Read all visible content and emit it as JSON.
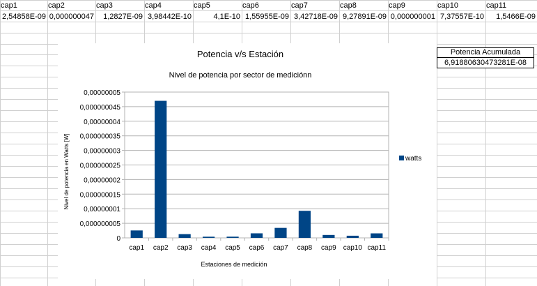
{
  "sheet": {
    "headers": [
      "cap1",
      "cap2",
      "cap3",
      "cap4",
      "cap5",
      "cap6",
      "cap7",
      "cap8",
      "cap9",
      "cap10",
      "cap11"
    ],
    "values": [
      "2,54858E-09",
      "0,000000047",
      "1,2827E-09",
      "3,98442E-10",
      "4,1E-10",
      "1,55955E-09",
      "3,42718E-09",
      "9,27891E-09",
      "0,000000001",
      "7,37557E-10",
      "1,5466E-09"
    ]
  },
  "summary": {
    "label": "Potencia Acumulada",
    "value": "6,91880630473281E-08"
  },
  "chart_data": {
    "type": "bar",
    "title": "Potencia v/s Estación",
    "subtitle": "Nivel de potencia por sector de mediciónn",
    "xlabel": "Estaciones de medición",
    "ylabel": "Nivel de potencia en Watts [W]",
    "categories": [
      "cap1",
      "cap2",
      "cap3",
      "cap4",
      "cap5",
      "cap6",
      "cap7",
      "cap8",
      "cap9",
      "cap10",
      "cap11"
    ],
    "series": [
      {
        "name": "watts",
        "values": [
          2.54858e-09,
          4.7e-08,
          1.2827e-09,
          3.98442e-10,
          4.1e-10,
          1.55955e-09,
          3.42718e-09,
          9.27891e-09,
          1e-09,
          7.37557e-10,
          1.5466e-09
        ]
      }
    ],
    "ylim": [
      0,
      5e-08
    ],
    "yticks": [
      "0",
      "0,000000005",
      "0,00000001",
      "0,000000015",
      "0,00000002",
      "0,000000025",
      "0,00000003",
      "0,000000035",
      "0,00000004",
      "0,000000045",
      "0,00000005"
    ],
    "grid": true,
    "legend": "right",
    "bar_color": "#004586"
  }
}
